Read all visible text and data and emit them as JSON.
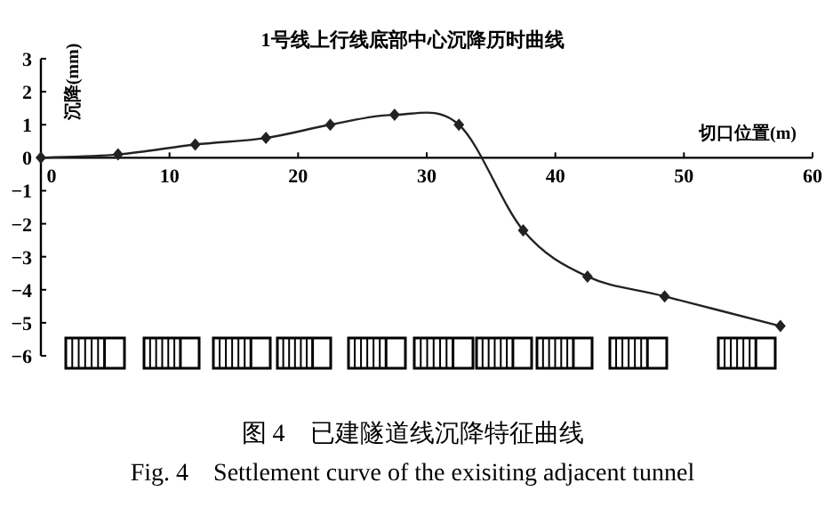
{
  "chart_data": {
    "type": "line",
    "title": "1号线上行线底部中心沉降历时曲线",
    "xlabel": "切口位置(m)",
    "ylabel": "沉降(mm)",
    "annotations": [
      "图 4　已建隧道线沉降特征曲线",
      "Fig. 4　Settlement curve of the exisiting adjacent tunnel"
    ],
    "x": [
      0,
      6,
      12,
      17.5,
      22.5,
      27.5,
      32.5,
      37.5,
      42.5,
      48.5,
      57.5
    ],
    "series": [
      {
        "color": "#222222",
        "values": [
          0,
          0.1,
          0.4,
          0.6,
          1.0,
          1.3,
          1.0,
          -2.2,
          -3.6,
          -4.2,
          -5.1
        ]
      }
    ],
    "xlim": [
      0,
      60
    ],
    "xticks": [
      0,
      10,
      20,
      30,
      40,
      50,
      60
    ],
    "ylim": [
      -6,
      3
    ],
    "yticks": [
      -6,
      -5,
      -4,
      -3,
      -2,
      -1,
      0,
      1,
      2,
      3
    ],
    "marker": "diamond",
    "grid": false
  }
}
